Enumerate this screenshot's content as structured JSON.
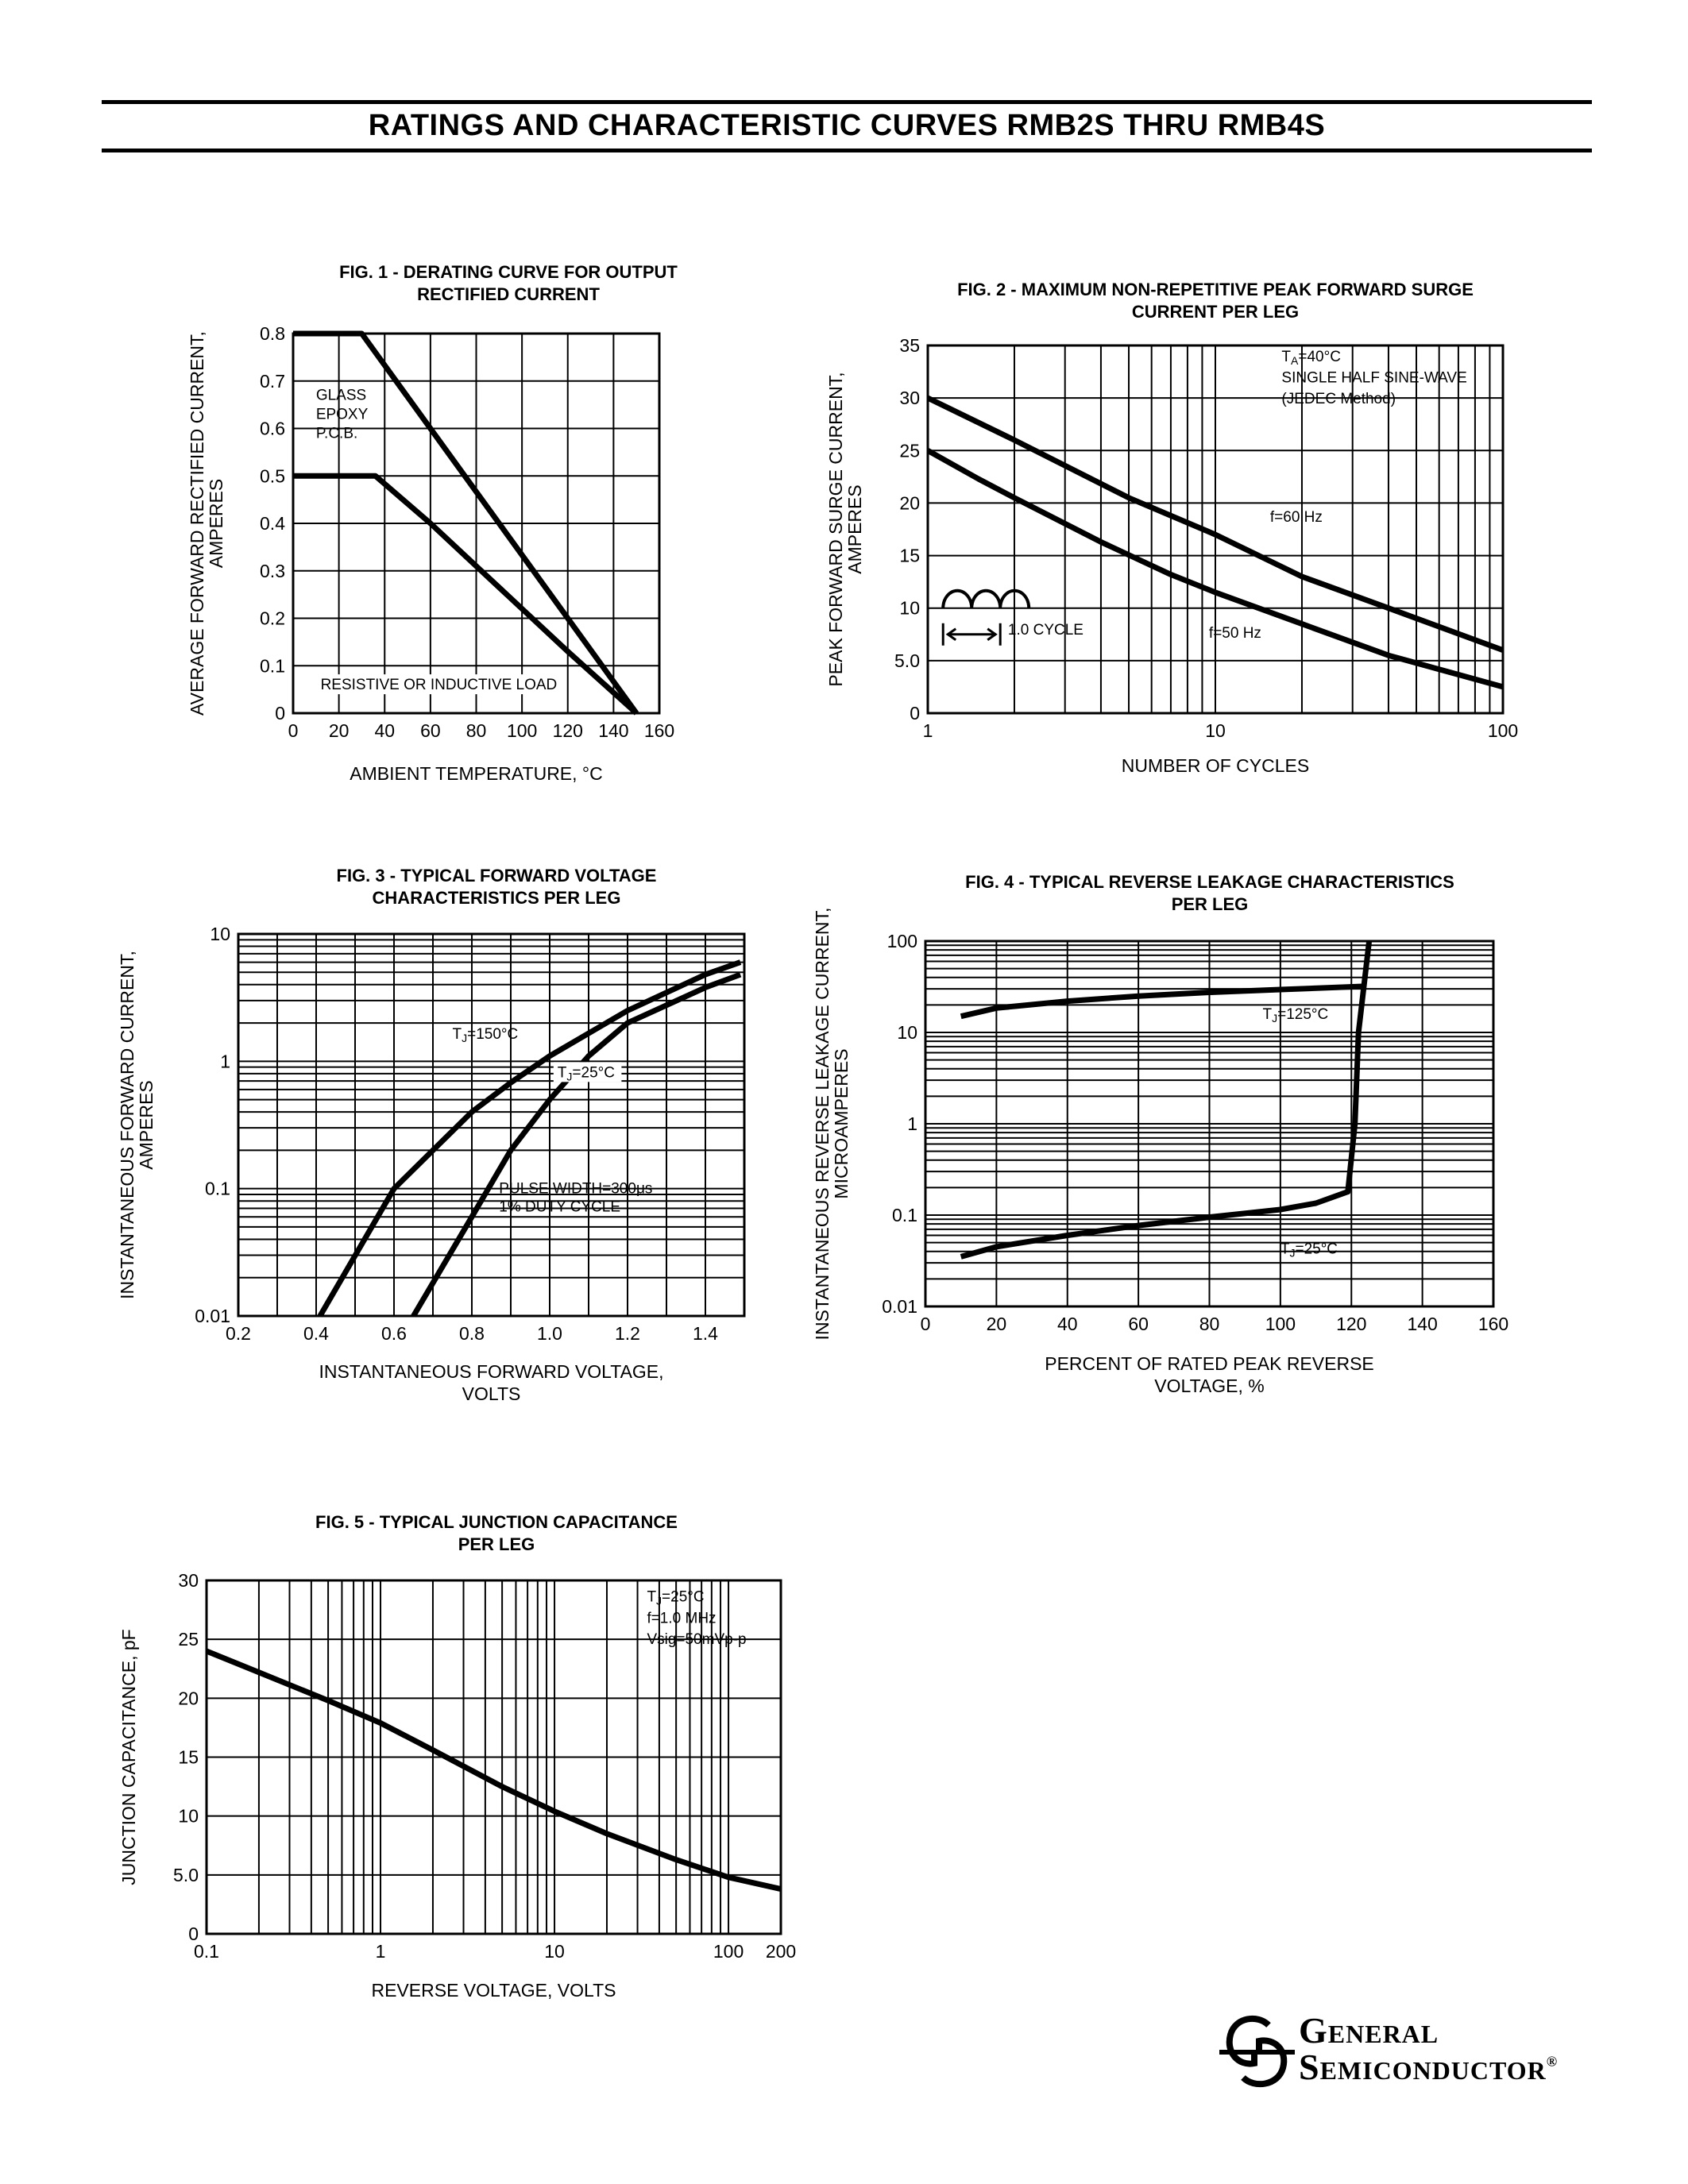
{
  "page_title": "RATINGS AND CHARACTERISTIC CURVES RMB2S THRU RMB4S",
  "logo": {
    "line1": "General",
    "line2": "Semiconductor",
    "registered": "®"
  },
  "chart_data": [
    {
      "id": "fig1",
      "type": "line",
      "title": [
        "FIG. 1 - DERATING CURVE FOR OUTPUT",
        "RECTIFIED CURRENT"
      ],
      "xlabel": "AMBIENT TEMPERATURE, °C",
      "ylabel": [
        "AVERAGE FORWARD RECTIFIED CURRENT,",
        "AMPERES"
      ],
      "xlim": [
        0,
        160
      ],
      "ylim": [
        0,
        0.8
      ],
      "xscale": "linear",
      "yscale": "linear",
      "xticks": [
        0,
        20,
        40,
        60,
        80,
        100,
        120,
        140,
        160
      ],
      "yticks": [
        0,
        0.1,
        0.2,
        0.3,
        0.4,
        0.5,
        0.6,
        0.7,
        0.8
      ],
      "ytick_labels": [
        "0",
        "0.1",
        "0.2",
        "0.3",
        "0.4",
        "0.5",
        "0.6",
        "0.7",
        "0.8"
      ],
      "xgrid": [
        0,
        20,
        40,
        60,
        80,
        100,
        120,
        140,
        160
      ],
      "ygrid": [
        0,
        0.1,
        0.2,
        0.3,
        0.4,
        0.5,
        0.6,
        0.7,
        0.8
      ],
      "series": [
        {
          "points": [
            [
              0,
              0.8
            ],
            [
              30,
              0.8
            ],
            [
              150,
              0
            ]
          ]
        },
        {
          "points": [
            [
              0,
              0.5
            ],
            [
              36,
              0.5
            ],
            [
              60,
              0.4
            ],
            [
              80,
              0.31
            ],
            [
              100,
              0.22
            ],
            [
              120,
              0.13
            ],
            [
              150,
              0
            ]
          ]
        }
      ],
      "annotations": [
        {
          "text": "GLASS",
          "x": 10,
          "y": 0.66
        },
        {
          "text": "EPOXY",
          "x": 10,
          "y": 0.62
        },
        {
          "text": "P.C.B.",
          "x": 10,
          "y": 0.58
        },
        {
          "text": "RESISTIVE OR INDUCTIVE LOAD",
          "x": 12,
          "y": 0.05,
          "boxed": true
        }
      ]
    },
    {
      "id": "fig2",
      "type": "line",
      "title": [
        "FIG. 2 - MAXIMUM NON-REPETITIVE PEAK FORWARD SURGE",
        "CURRENT PER LEG"
      ],
      "xlabel": "NUMBER OF CYCLES",
      "ylabel": [
        "PEAK FORWARD SURGE CURRENT,",
        "AMPERES"
      ],
      "xlim": [
        1,
        100
      ],
      "ylim": [
        0,
        35
      ],
      "xscale": "log",
      "yscale": "linear",
      "xticks": [
        1,
        10,
        100
      ],
      "yticks": [
        0,
        5,
        10,
        15,
        20,
        25,
        30,
        35
      ],
      "ytick_labels": [
        "0",
        "5.0",
        "10",
        "15",
        "20",
        "25",
        "30",
        "35"
      ],
      "xgrid": [
        1,
        2,
        3,
        4,
        5,
        6,
        7,
        8,
        9,
        10,
        20,
        30,
        40,
        50,
        60,
        70,
        80,
        90,
        100
      ],
      "ygrid": [
        0,
        5,
        10,
        15,
        20,
        25,
        30,
        35
      ],
      "series": [
        {
          "name": "f=60 Hz",
          "points": [
            [
              1,
              30
            ],
            [
              2,
              26
            ],
            [
              5,
              20.5
            ],
            [
              10,
              17
            ],
            [
              20,
              13
            ],
            [
              40,
              10
            ],
            [
              100,
              6
            ]
          ]
        },
        {
          "name": "f=50 Hz",
          "points": [
            [
              1,
              25
            ],
            [
              1.5,
              22.3
            ],
            [
              2,
              20.5
            ],
            [
              4,
              16.3
            ],
            [
              7,
              13.2
            ],
            [
              10,
              11.5
            ],
            [
              20,
              8.5
            ],
            [
              40,
              5.5
            ],
            [
              100,
              2.5
            ]
          ]
        }
      ],
      "annotations": [
        {
          "text": "TA=40°C",
          "x": 17,
          "y": 33.5
        },
        {
          "text": "SINGLE HALF SINE-WAVE",
          "x": 17,
          "y": 31.5
        },
        {
          "text": "(JEDEC Method)",
          "x": 17,
          "y": 29.5
        },
        {
          "text": "f=60 Hz",
          "x": 15.5,
          "y": 18.2
        },
        {
          "text": "f=50 Hz",
          "x": 9.5,
          "y": 7.2
        },
        {
          "text": "1.0 CYCLE",
          "x": 1.9,
          "y": 7.5
        }
      ]
    },
    {
      "id": "fig3",
      "type": "line",
      "title": [
        "FIG. 3 - TYPICAL FORWARD VOLTAGE",
        "CHARACTERISTICS PER LEG"
      ],
      "xlabel": [
        "INSTANTANEOUS FORWARD VOLTAGE,",
        "VOLTS"
      ],
      "ylabel": [
        "INSTANTANEOUS FORWARD CURRENT,",
        "AMPERES"
      ],
      "xlim": [
        0.2,
        1.5
      ],
      "ylim": [
        0.01,
        10
      ],
      "xscale": "linear",
      "yscale": "log",
      "xticks": [
        0.2,
        0.4,
        0.6,
        0.8,
        1.0,
        1.2,
        1.4
      ],
      "xtick_labels": [
        "0.2",
        "0.4",
        "0.6",
        "0.8",
        "1.0",
        "1.2",
        "1.4"
      ],
      "yticks": [
        0.01,
        0.1,
        1,
        10
      ],
      "ytick_labels": [
        "0.01",
        "0.1",
        "1",
        "10"
      ],
      "xgrid": [
        0.2,
        0.3,
        0.4,
        0.5,
        0.6,
        0.7,
        0.8,
        0.9,
        1.0,
        1.1,
        1.2,
        1.3,
        1.4,
        1.5
      ],
      "ygrid": [
        0.01,
        0.02,
        0.03,
        0.04,
        0.05,
        0.06,
        0.07,
        0.08,
        0.09,
        0.1,
        0.2,
        0.3,
        0.4,
        0.5,
        0.6,
        0.7,
        0.8,
        0.9,
        1,
        2,
        3,
        4,
        5,
        6,
        7,
        8,
        9,
        10
      ],
      "series": [
        {
          "name": "TJ=150°C",
          "points": [
            [
              0.41,
              0.01
            ],
            [
              0.6,
              0.1
            ],
            [
              0.7,
              0.2
            ],
            [
              0.8,
              0.4
            ],
            [
              0.9,
              0.68
            ],
            [
              1.0,
              1.1
            ],
            [
              1.2,
              2.5
            ],
            [
              1.4,
              4.8
            ],
            [
              1.49,
              6
            ]
          ]
        },
        {
          "name": "TJ=25°C",
          "points": [
            [
              0.65,
              0.01
            ],
            [
              0.8,
              0.06
            ],
            [
              0.9,
              0.2
            ],
            [
              1.0,
              0.5
            ],
            [
              1.1,
              1.1
            ],
            [
              1.2,
              2.0
            ],
            [
              1.4,
              3.8
            ],
            [
              1.49,
              4.8
            ]
          ]
        }
      ],
      "annotations": [
        {
          "text": "TJ=150°C",
          "x": 0.75,
          "y": 1.5
        },
        {
          "text": "TJ=25°C",
          "x": 1.02,
          "y": 0.75,
          "boxed": true
        },
        {
          "text": "PULSE WIDTH=300μs",
          "x": 0.87,
          "y": 0.092
        },
        {
          "text": "1% DUTY CYCLE",
          "x": 0.87,
          "y": 0.066
        }
      ]
    },
    {
      "id": "fig4",
      "type": "line",
      "title": [
        "FIG. 4 - TYPICAL REVERSE LEAKAGE CHARACTERISTICS",
        "PER LEG"
      ],
      "xlabel": [
        "PERCENT OF RATED PEAK REVERSE",
        "VOLTAGE, %"
      ],
      "ylabel": [
        "INSTANTANEOUS REVERSE LEAKAGE CURRENT,",
        "MICROAMPERES"
      ],
      "xlim": [
        0,
        160
      ],
      "ylim": [
        0.01,
        100
      ],
      "xscale": "linear",
      "yscale": "log",
      "xticks": [
        0,
        20,
        40,
        60,
        80,
        100,
        120,
        140,
        160
      ],
      "yticks": [
        0.01,
        0.1,
        1,
        10,
        100
      ],
      "ytick_labels": [
        "0.01",
        "0.1",
        "1",
        "10",
        "100"
      ],
      "xgrid": [
        0,
        20,
        40,
        60,
        80,
        100,
        120,
        140,
        160
      ],
      "ygrid": [
        0.01,
        0.02,
        0.03,
        0.04,
        0.05,
        0.06,
        0.07,
        0.08,
        0.09,
        0.1,
        0.2,
        0.3,
        0.4,
        0.5,
        0.6,
        0.7,
        0.8,
        0.9,
        1,
        2,
        3,
        4,
        5,
        6,
        7,
        8,
        9,
        10,
        20,
        30,
        40,
        50,
        60,
        70,
        80,
        90,
        100
      ],
      "series": [
        {
          "name": "TJ=125°C",
          "points": [
            [
              10,
              15
            ],
            [
              20,
              18.5
            ],
            [
              40,
              22
            ],
            [
              60,
              25
            ],
            [
              80,
              27.5
            ],
            [
              100,
              29.5
            ],
            [
              124,
              32
            ]
          ]
        },
        {
          "name": "TJ=25°C",
          "points": [
            [
              10,
              0.035
            ],
            [
              20,
              0.045
            ],
            [
              40,
              0.06
            ],
            [
              60,
              0.077
            ],
            [
              80,
              0.095
            ],
            [
              100,
              0.115
            ],
            [
              110,
              0.135
            ],
            [
              119,
              0.18
            ],
            [
              121,
              1.0
            ],
            [
              122,
              10
            ],
            [
              125,
              100
            ]
          ]
        }
      ],
      "annotations": [
        {
          "text": "TJ=125°C",
          "x": 95,
          "y": 14
        },
        {
          "text": "TJ=25°C",
          "x": 100,
          "y": 0.038
        }
      ]
    },
    {
      "id": "fig5",
      "type": "line",
      "title": [
        "FIG. 5 - TYPICAL JUNCTION CAPACITANCE",
        "PER LEG"
      ],
      "xlabel": "REVERSE VOLTAGE, VOLTS",
      "ylabel": "JUNCTION CAPACITANCE,  pF",
      "xlim": [
        0.1,
        200
      ],
      "ylim": [
        0,
        30
      ],
      "xscale": "log",
      "yscale": "linear",
      "xticks": [
        0.1,
        1,
        10,
        100,
        200
      ],
      "xtick_labels": [
        "0.1",
        "1",
        "10",
        "100",
        "200"
      ],
      "yticks": [
        0,
        5,
        10,
        15,
        20,
        25,
        30
      ],
      "ytick_labels": [
        "0",
        "5.0",
        "10",
        "15",
        "20",
        "25",
        "30"
      ],
      "xgrid": [
        0.1,
        0.2,
        0.3,
        0.4,
        0.5,
        0.6,
        0.7,
        0.8,
        0.9,
        1,
        2,
        3,
        4,
        5,
        6,
        7,
        8,
        9,
        10,
        20,
        30,
        40,
        50,
        60,
        70,
        80,
        90,
        100,
        200
      ],
      "ygrid": [
        0,
        5,
        10,
        15,
        20,
        25,
        30
      ],
      "series": [
        {
          "points": [
            [
              0.1,
              24
            ],
            [
              0.2,
              22.2
            ],
            [
              0.5,
              19.8
            ],
            [
              1,
              17.9
            ],
            [
              2,
              15.6
            ],
            [
              5,
              12.5
            ],
            [
              10,
              10.4
            ],
            [
              20,
              8.5
            ],
            [
              50,
              6.3
            ],
            [
              100,
              4.8
            ],
            [
              200,
              3.8
            ]
          ]
        }
      ],
      "annotations": [
        {
          "text": "TJ=25°C",
          "x": 34,
          "y": 28.2
        },
        {
          "text": "f=1.0 MHz",
          "x": 34,
          "y": 26.4
        },
        {
          "text": "Vsig=50mVp-p",
          "x": 34,
          "y": 24.6
        }
      ]
    }
  ]
}
